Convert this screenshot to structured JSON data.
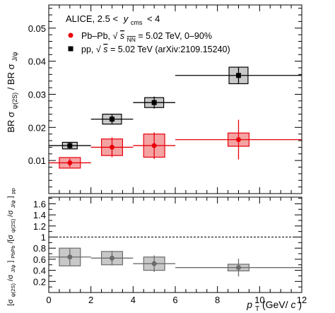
{
  "chart_data": [
    {
      "type": "scatter",
      "panel": "top",
      "ylabel_main": "BR σ",
      "ylabel_sub1": "ψ(2S)",
      "ylabel_mid": "/ BR σ",
      "ylabel_sub2": "J/ψ",
      "ylim": [
        0.0,
        0.057
      ],
      "yticks": [
        0.01,
        0.02,
        0.03,
        0.04,
        0.05
      ],
      "ytick_labels": [
        "0.01",
        "0.02",
        "0.03",
        "0.04",
        "0.05"
      ],
      "annotation": {
        "prefix": "ALICE, 2.5 <",
        "y": "y",
        "sub": "cms",
        "suffix": "< 4"
      },
      "legend": {
        "placement": "top-left",
        "entries": [
          {
            "series": "Pb–Pb",
            "marker": "circle",
            "color": "#e8000b",
            "text_before": "Pb–Pb, ",
            "root": "√",
            "snn": "s",
            "snn_sub": "NN",
            "text_after": " = 5.02 TeV, 0–90%"
          },
          {
            "series": "pp",
            "marker": "square",
            "color": "#000000",
            "text_before": "pp, ",
            "root": "√",
            "s": "s",
            "text_after": " = 5.02 TeV (arXiv:2109.15240)"
          }
        ]
      },
      "series": [
        {
          "name": "Pb–Pb",
          "color": "#e8000b",
          "box_fill": "#f4a3a3",
          "marker": "circle",
          "points": [
            {
              "x": 1.0,
              "xlo": 0.0,
              "xhi": 2.0,
              "y": 0.0093,
              "stat_lo": 0.0013,
              "stat_hi": 0.0013,
              "sys_lo": 0.0016,
              "sys_hi": 0.0016,
              "box_half_w": 0.5
            },
            {
              "x": 3.0,
              "xlo": 2.0,
              "xhi": 4.0,
              "y": 0.014,
              "stat_lo": 0.003,
              "stat_hi": 0.003,
              "sys_lo": 0.0025,
              "sys_hi": 0.0025,
              "box_half_w": 0.5
            },
            {
              "x": 5.0,
              "xlo": 4.0,
              "xhi": 6.0,
              "y": 0.0145,
              "stat_lo": 0.004,
              "stat_hi": 0.004,
              "sys_lo": 0.0035,
              "sys_hi": 0.0035,
              "box_half_w": 0.5
            },
            {
              "x": 9.0,
              "xlo": 6.0,
              "xhi": 12.0,
              "y": 0.0163,
              "stat_lo": 0.006,
              "stat_hi": 0.006,
              "sys_lo": 0.002,
              "sys_hi": 0.002,
              "box_half_w": 0.5
            }
          ]
        },
        {
          "name": "pp",
          "color": "#000000",
          "box_fill": "#c8c8c8",
          "marker": "square",
          "points": [
            {
              "x": 1.0,
              "xlo": 0.0,
              "xhi": 2.0,
              "y": 0.0145,
              "stat_lo": 0.001,
              "stat_hi": 0.001,
              "sys_lo": 0.001,
              "sys_hi": 0.001,
              "box_half_w": 0.35
            },
            {
              "x": 3.0,
              "xlo": 2.0,
              "xhi": 4.0,
              "y": 0.0225,
              "stat_lo": 0.0015,
              "stat_hi": 0.0015,
              "sys_lo": 0.0015,
              "sys_hi": 0.0015,
              "box_half_w": 0.45
            },
            {
              "x": 5.0,
              "xlo": 4.0,
              "xhi": 6.0,
              "y": 0.0275,
              "stat_lo": 0.0018,
              "stat_hi": 0.0018,
              "sys_lo": 0.0015,
              "sys_hi": 0.0015,
              "box_half_w": 0.45
            },
            {
              "x": 9.0,
              "xlo": 6.0,
              "xhi": 12.0,
              "y": 0.0357,
              "stat_lo": 0.0025,
              "stat_hi": 0.0025,
              "sys_lo": 0.0025,
              "sys_hi": 0.0025,
              "box_half_w": 0.45
            }
          ]
        }
      ]
    },
    {
      "type": "scatter",
      "panel": "bottom",
      "ylabel_a": "[σ",
      "ylabel_a_sub": "ψ(2S)",
      "ylabel_b": "/σ",
      "ylabel_b_sub": "J/ψ",
      "ylabel_c": "]",
      "ylabel_c_sub": "PbPb",
      "ylabel_d": "/[σ",
      "ylabel_d_sub": "ψ(2S)",
      "ylabel_e": "/σ",
      "ylabel_e_sub": "J/ψ",
      "ylabel_f": "]",
      "ylabel_f_sub": "pp",
      "xlabel_p": "p",
      "xlabel_sub": "T",
      "xlabel_rest": " (GeV/",
      "xlabel_c": "c",
      "xlabel_end": ")",
      "xlim": [
        0,
        12
      ],
      "xticks": [
        0,
        2,
        4,
        6,
        8,
        10,
        12
      ],
      "xtick_labels": [
        "0",
        "2",
        "4",
        "6",
        "8",
        "10",
        "12"
      ],
      "ylim": [
        0,
        1.72
      ],
      "yticks": [
        0.2,
        0.4,
        0.6,
        0.8,
        1.0,
        1.2,
        1.4,
        1.6
      ],
      "ytick_labels": [
        "0.2",
        "0.4",
        "0.6",
        "0.8",
        "1",
        "1.2",
        "1.4",
        "1.6"
      ],
      "reference_line": 1.0,
      "series": [
        {
          "name": "Ratio",
          "color": "#6b6b6b",
          "box_fill": "#c8c8c8",
          "marker": "circle",
          "points": [
            {
              "x": 1.0,
              "xlo": 0.0,
              "xhi": 2.0,
              "y": 0.64,
              "stat_lo": 0.15,
              "stat_hi": 0.15,
              "sys_lo": 0.16,
              "sys_hi": 0.16,
              "box_half_w": 0.5
            },
            {
              "x": 3.0,
              "xlo": 2.0,
              "xhi": 4.0,
              "y": 0.62,
              "stat_lo": 0.13,
              "stat_hi": 0.13,
              "sys_lo": 0.12,
              "sys_hi": 0.12,
              "box_half_w": 0.5
            },
            {
              "x": 5.0,
              "xlo": 4.0,
              "xhi": 6.0,
              "y": 0.52,
              "stat_lo": 0.15,
              "stat_hi": 0.15,
              "sys_lo": 0.12,
              "sys_hi": 0.12,
              "box_half_w": 0.5
            },
            {
              "x": 9.0,
              "xlo": 6.0,
              "xhi": 12.0,
              "y": 0.45,
              "stat_lo": 0.16,
              "stat_hi": 0.16,
              "sys_lo": 0.06,
              "sys_hi": 0.06,
              "box_half_w": 0.5
            }
          ]
        }
      ]
    }
  ]
}
